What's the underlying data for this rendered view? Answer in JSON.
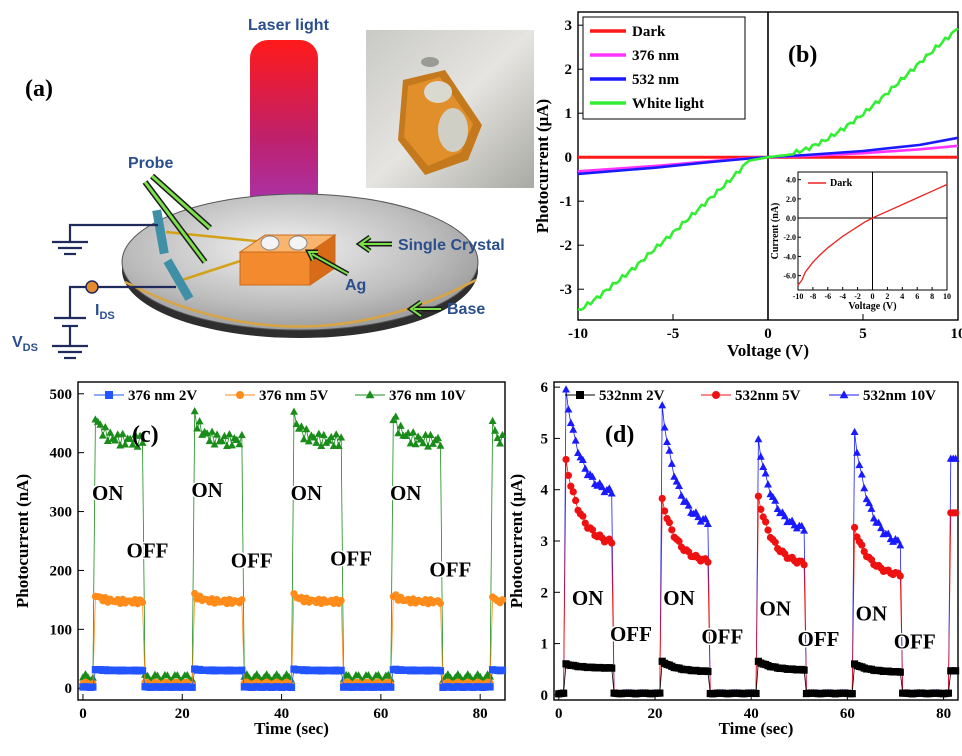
{
  "panel_a": {
    "letter": "(a)",
    "laser_label": "Laser light",
    "probe_label": "Probe",
    "crystal_label": "Single Crystal",
    "ag_label": "Ag",
    "base_label": "Base",
    "ids_label": "I",
    "ids_sub": "DS",
    "vds_label": "V",
    "vds_sub": "DS"
  },
  "chart_data": [
    {
      "panel": "(b)",
      "type": "line",
      "xlabel": "Voltage (V)",
      "ylabel": "Photocurrent (μA)",
      "xlim": [
        -10,
        10
      ],
      "ylim": [
        -3.7,
        3.3
      ],
      "xticks": [
        -10,
        -5,
        0,
        5,
        10
      ],
      "yticks": [
        -3,
        -2,
        -1,
        0,
        1,
        2,
        3
      ],
      "legend_position": "top-left",
      "colors": {
        "Dark": "#ff1a1a",
        "376 nm": "#ff33ff",
        "532 nm": "#1a1aff",
        "White light": "#33ee33"
      },
      "series": [
        {
          "name": "Dark",
          "x": [
            -10,
            -5,
            0,
            5,
            10
          ],
          "y": [
            0,
            0,
            0,
            0,
            0
          ]
        },
        {
          "name": "376 nm",
          "x": [
            -10,
            -6,
            -3,
            -1,
            0,
            2,
            5,
            8,
            10
          ],
          "y": [
            -0.32,
            -0.2,
            -0.09,
            -0.02,
            0,
            0.03,
            0.09,
            0.18,
            0.26
          ]
        },
        {
          "name": "532 nm",
          "x": [
            -10,
            -6,
            -3,
            -1,
            0,
            2,
            5,
            8,
            10
          ],
          "y": [
            -0.38,
            -0.24,
            -0.11,
            -0.03,
            0,
            0.05,
            0.14,
            0.28,
            0.44
          ]
        },
        {
          "name": "White light",
          "x": [
            -10,
            -9,
            -8,
            -7,
            -6,
            -5,
            -4,
            -3,
            -2,
            -1,
            0,
            1,
            2,
            3,
            4,
            5,
            6,
            7,
            8,
            9,
            10
          ],
          "y": [
            -3.5,
            -3.2,
            -2.85,
            -2.5,
            -2.1,
            -1.72,
            -1.32,
            -0.92,
            -0.52,
            -0.08,
            0,
            0.05,
            0.18,
            0.38,
            0.66,
            0.98,
            1.35,
            1.75,
            2.15,
            2.55,
            2.92
          ]
        }
      ],
      "inset": {
        "type": "line",
        "xlabel": "Voltage (V)",
        "ylabel": "Current (nA)",
        "xlim": [
          -10,
          10
        ],
        "ylim": [
          -7.5,
          4.8
        ],
        "xticks": [
          -10,
          -8,
          -6,
          -4,
          -2,
          0,
          2,
          4,
          6,
          8,
          10
        ],
        "ytick_labels": [
          "4.0",
          "2.0",
          "0.0",
          "-2.0",
          "-4.0",
          "-6.0"
        ],
        "yticks": [
          4,
          2,
          0,
          -2,
          -4,
          -6
        ],
        "series": [
          {
            "name": "Dark",
            "x": [
              -10,
              -9.5,
              -9,
              -8,
              -7,
              -6,
              -5,
              -4,
              -3,
              -2,
              -1,
              0,
              2,
              4,
              6,
              8,
              10
            ],
            "y": [
              -7,
              -6.5,
              -5.6,
              -4.6,
              -3.8,
              -3.1,
              -2.5,
              -1.9,
              -1.4,
              -0.9,
              -0.4,
              0,
              0.7,
              1.4,
              2.1,
              2.8,
              3.5
            ]
          }
        ]
      }
    },
    {
      "panel": "(c)",
      "type": "scatter",
      "xlabel": "Time (sec)",
      "ylabel": "Photocurrent (nA)",
      "xlim": [
        -1,
        85
      ],
      "ylim": [
        -20,
        520
      ],
      "xticks": [
        0,
        20,
        40,
        60,
        80
      ],
      "yticks": [
        0,
        100,
        200,
        300,
        400,
        500
      ],
      "legend_position": "top",
      "colors": {
        "376 nm 2V": "#2255ff",
        "376 nm 5V": "#ff8c1a",
        "376 nm 10V": "#1a8c1a"
      },
      "on_windows": [
        [
          2.5,
          12.5
        ],
        [
          22.5,
          32.5
        ],
        [
          42.5,
          52.5
        ],
        [
          62.5,
          72.5
        ],
        [
          82.5,
          85
        ]
      ],
      "series": [
        {
          "name": "376 nm 2V",
          "marker": "square",
          "on_level": 30,
          "off_level": 2,
          "peak": 32
        },
        {
          "name": "376 nm 5V",
          "marker": "circle",
          "on_level": 147,
          "off_level": 8,
          "peak": 158
        },
        {
          "name": "376 nm 10V",
          "marker": "triangle",
          "on_level": 420,
          "off_level": 18,
          "peak": 462
        }
      ],
      "annotations": [
        {
          "text": "ON",
          "x": 5,
          "y": 320
        },
        {
          "text": "ON",
          "x": 25,
          "y": 325
        },
        {
          "text": "ON",
          "x": 45,
          "y": 320
        },
        {
          "text": "ON",
          "x": 65,
          "y": 320
        },
        {
          "text": "OFF",
          "x": 13,
          "y": 222
        },
        {
          "text": "OFF",
          "x": 34,
          "y": 205
        },
        {
          "text": "OFF",
          "x": 54,
          "y": 208
        },
        {
          "text": "OFF",
          "x": 74,
          "y": 190
        }
      ]
    },
    {
      "panel": "(d)",
      "type": "scatter",
      "xlabel": "Time (sec)",
      "ylabel": "Photocurrent (μA)",
      "xlim": [
        -1,
        83
      ],
      "ylim": [
        -0.1,
        6.1
      ],
      "xticks": [
        0,
        20,
        40,
        60,
        80
      ],
      "yticks": [
        0,
        1,
        2,
        3,
        4,
        5,
        6
      ],
      "legend_position": "top",
      "colors": {
        "532nm 2V": "#000000",
        "532nm 5V": "#ee1111",
        "532nm 10V": "#1a1aff"
      },
      "on_windows": [
        [
          1.5,
          11.5
        ],
        [
          21.5,
          31.5
        ],
        [
          41.5,
          51.5
        ],
        [
          61.5,
          71.5
        ],
        [
          81.5,
          83
        ]
      ],
      "series": [
        {
          "name": "532nm 2V",
          "marker": "square",
          "peaks": [
            0.6,
            0.65,
            0.65,
            0.6
          ],
          "ends": [
            0.52,
            0.45,
            0.48,
            0.44
          ]
        },
        {
          "name": "532nm 5V",
          "marker": "circle",
          "peaks": [
            4.55,
            3.8,
            3.85,
            3.25
          ],
          "ends": [
            2.9,
            2.55,
            2.5,
            2.3
          ]
        },
        {
          "name": "532nm 10V",
          "marker": "triangle",
          "peaks": [
            5.9,
            5.6,
            4.95,
            5.1
          ],
          "ends": [
            3.85,
            3.25,
            3.15,
            2.85
          ]
        }
      ],
      "annotations": [
        {
          "text": "ON",
          "x": 6,
          "y": 1.75
        },
        {
          "text": "ON",
          "x": 25,
          "y": 1.75
        },
        {
          "text": "ON",
          "x": 45,
          "y": 1.55
        },
        {
          "text": "ON",
          "x": 65,
          "y": 1.45
        },
        {
          "text": "OFF",
          "x": 15,
          "y": 1.05
        },
        {
          "text": "OFF",
          "x": 34,
          "y": 1.0
        },
        {
          "text": "OFF",
          "x": 54,
          "y": 0.95
        },
        {
          "text": "OFF",
          "x": 74,
          "y": 0.9
        }
      ]
    }
  ]
}
